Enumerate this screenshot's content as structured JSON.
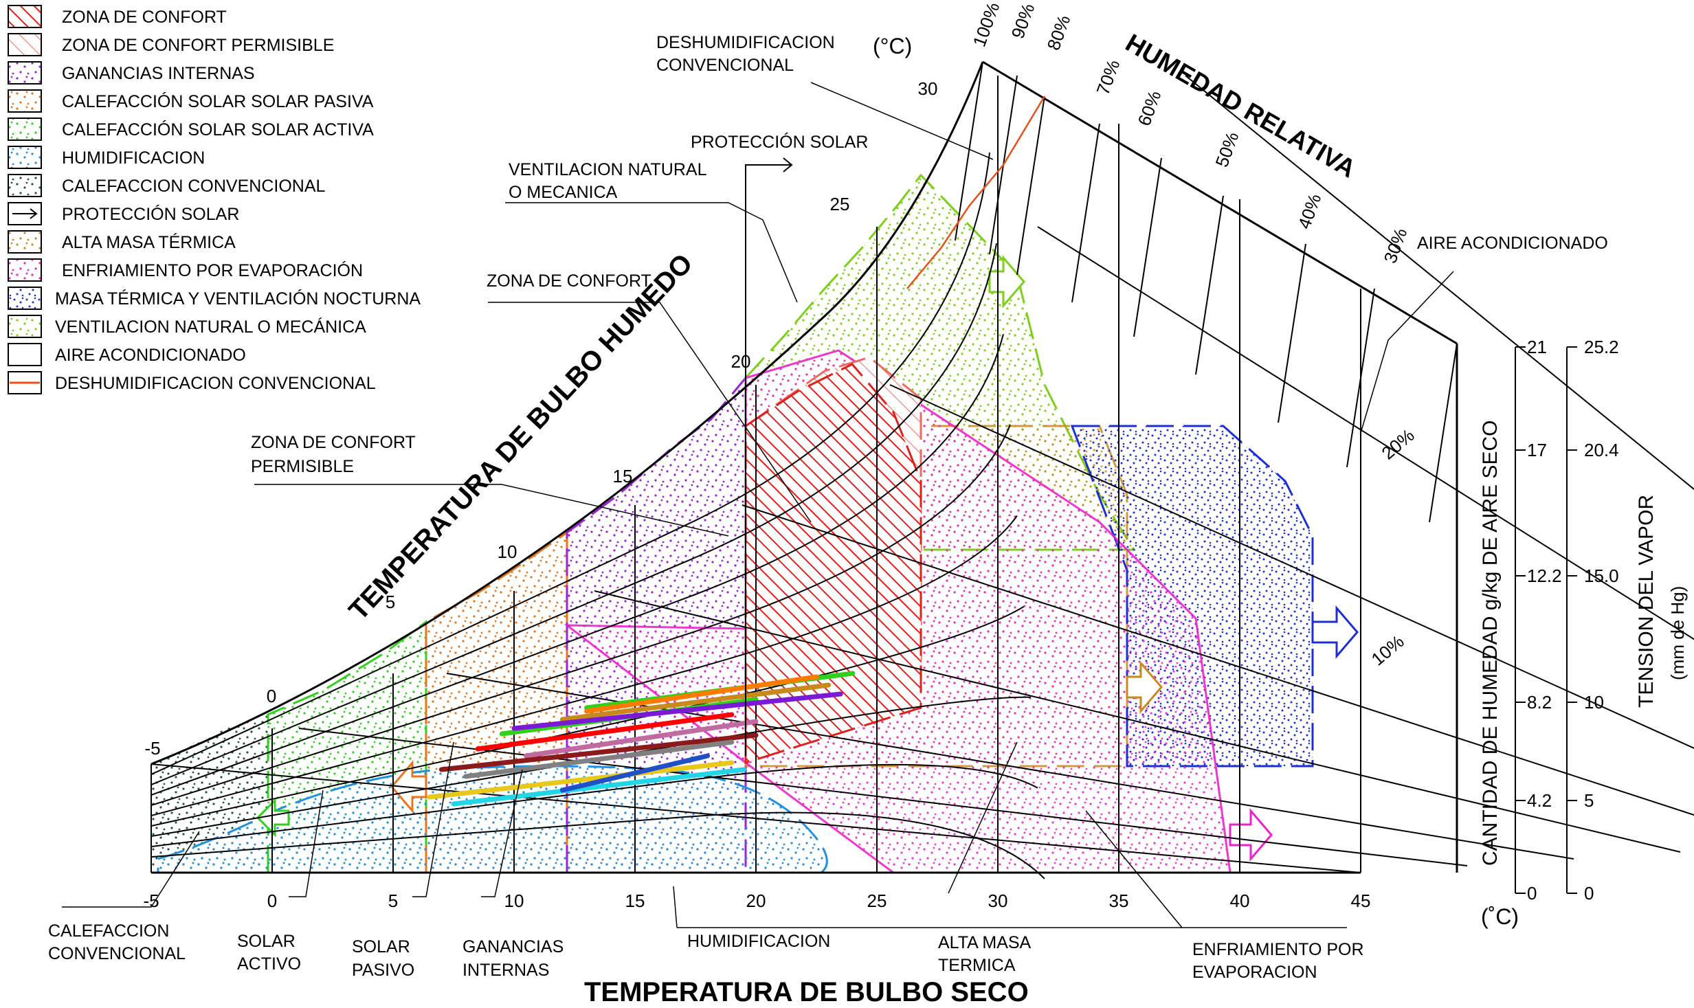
{
  "legend": [
    {
      "label": "ZONA DE CONFORT",
      "color": "#e0201a",
      "pattern": "hatch-dense"
    },
    {
      "label": "ZONA DE CONFORT PERMISIBLE",
      "color": "#f06a60",
      "pattern": "hatch-light"
    },
    {
      "label": "GANANCIAS INTERNAS",
      "color": "#9b22d6",
      "pattern": "dots"
    },
    {
      "label": "CALEFACCIÓN SOLAR SOLAR PASIVA",
      "color": "#e8751a",
      "pattern": "dots"
    },
    {
      "label": "CALEFACCIÓN SOLAR SOLAR ACTIVA",
      "color": "#2fd11a",
      "pattern": "dots"
    },
    {
      "label": "HUMIDIFICACION",
      "color": "#2090e0",
      "pattern": "dots"
    },
    {
      "label": "CALEFACCION CONVENCIONAL",
      "color": "#1c5a46",
      "pattern": "dots"
    },
    {
      "label": "PROTECCIÓN SOLAR",
      "color": "#000000",
      "pattern": "arrow"
    },
    {
      "label": "ALTA MASA TÉRMICA",
      "color": "#c98a1c",
      "pattern": "dots"
    },
    {
      "label": "ENFRIAMIENTO POR EVAPORACIÓN",
      "color": "#ee22cc",
      "pattern": "dots"
    },
    {
      "label": "MASA TÉRMICA Y VENTILACIÓN NOCTURNA",
      "color": "#1a2fd6",
      "pattern": "dots"
    },
    {
      "label": "VENTILACION NATURAL O MECÁNICA",
      "color": "#7ccf1a",
      "pattern": "dots"
    },
    {
      "label": "AIRE ACONDICIONADO",
      "color": "#000000",
      "pattern": "none"
    },
    {
      "label": "DESHUMIDIFICACION CONVENCIONAL",
      "color": "#e8501a",
      "pattern": "line"
    }
  ],
  "titles": {
    "x_axis": "TEMPERATURA DE BULBO SECO",
    "wet_bulb": "TEMPERATURA DE BULBO HUMEDO",
    "relative_humidity": "HUMEDAD RELATIVA",
    "humidity_ratio": "CANTIDAD DE HUMEDAD g/kg DE AIRE SECO",
    "vapor_pressure_line1": "TENSION DEL VAPOR",
    "vapor_pressure_line2": "(mm de Hg)",
    "unit_top": "(°C)",
    "unit_bottom": "(˚C)"
  },
  "x_ticks": [
    "-5",
    "0",
    "5",
    "10",
    "15",
    "20",
    "25",
    "30",
    "35",
    "40",
    "45"
  ],
  "wet_bulb_ticks": [
    "-5",
    "0",
    "5",
    "10",
    "15",
    "20",
    "25",
    "30"
  ],
  "rh_labels": [
    "100%",
    "90%",
    "80%",
    "70%",
    "60%",
    "50%",
    "40%",
    "30%",
    "20%",
    "10%"
  ],
  "humidity_ticks": [
    "21",
    "17",
    "12.2",
    "8.2",
    "4.2",
    "0"
  ],
  "vapor_ticks": [
    "25.2",
    "20.4",
    "15.0",
    "10",
    "5",
    "0"
  ],
  "callouts": {
    "deshumidificacion": [
      "DESHUMIDIFICACION",
      "CONVENCIONAL"
    ],
    "proteccion_solar": "PROTECCIÓN SOLAR",
    "ventilacion": [
      "VENTILACION NATURAL",
      "O MECANICA"
    ],
    "zona_confort": "ZONA DE CONFORT",
    "zona_permisible": [
      "ZONA DE CONFORT",
      "PERMISIBLE"
    ],
    "aire_acondicionado": "AIRE ACONDICIONADO",
    "calefaccion": [
      "CALEFACCION",
      "CONVENCIONAL"
    ],
    "solar_activo": [
      "SOLAR",
      "ACTIVO"
    ],
    "solar_pasivo": [
      "SOLAR",
      "PASIVO"
    ],
    "ganancias": [
      "GANANCIAS",
      "INTERNAS"
    ],
    "humidificacion": "HUMIDIFICACION",
    "alta_masa": [
      "ALTA MASA",
      "TERMICA"
    ],
    "enfriamiento": [
      "ENFRIAMIENTO POR",
      "EVAPORACION"
    ]
  },
  "chart_data": {
    "type": "psychrometric",
    "x_axis": {
      "label": "TEMPERATURA DE BULBO SECO",
      "unit": "°C",
      "range": [
        -5,
        45
      ],
      "ticks": [
        -5,
        0,
        5,
        10,
        15,
        20,
        25,
        30,
        35,
        40,
        45
      ]
    },
    "humidity_axis": {
      "label": "CANTIDAD DE HUMEDAD g/kg DE AIRE SECO",
      "ticks": [
        0,
        4.2,
        8.2,
        12.2,
        17,
        21
      ]
    },
    "vapor_axis": {
      "label": "TENSION DEL VAPOR",
      "unit": "mm de Hg",
      "ticks": [
        0,
        5,
        10,
        15.0,
        20.4,
        25.2
      ]
    },
    "relative_humidity_curves": [
      100,
      90,
      80,
      70,
      60,
      50,
      40,
      30,
      20,
      10
    ],
    "wet_bulb_lines": [
      -5,
      0,
      5,
      10,
      15,
      20,
      25,
      30
    ],
    "monthly_lines": [
      {
        "color": "#2fd11a",
        "x": [
          13,
          24
        ]
      },
      {
        "color": "#c98a1c",
        "x": [
          12,
          23
        ]
      },
      {
        "color": "#ff7a00",
        "x": [
          13,
          22.5
        ]
      },
      {
        "color": "#2fd11a",
        "x": [
          9.5,
          20
        ]
      },
      {
        "color": "#7a1ad6",
        "x": [
          10,
          23.5
        ]
      },
      {
        "color": "#ff0000",
        "x": [
          8.5,
          19
        ]
      },
      {
        "color": "#c06aa0",
        "x": [
          10.5,
          20
        ]
      },
      {
        "color": "#8b1a1a",
        "x": [
          7,
          20
        ]
      },
      {
        "color": "#808080",
        "x": [
          8,
          19
        ]
      },
      {
        "color": "#e8c81a",
        "x": [
          6.5,
          19
        ]
      },
      {
        "color": "#22d6e6",
        "x": [
          7.5,
          19.5
        ]
      },
      {
        "color": "#2050c8",
        "x": [
          12,
          18
        ]
      }
    ]
  }
}
